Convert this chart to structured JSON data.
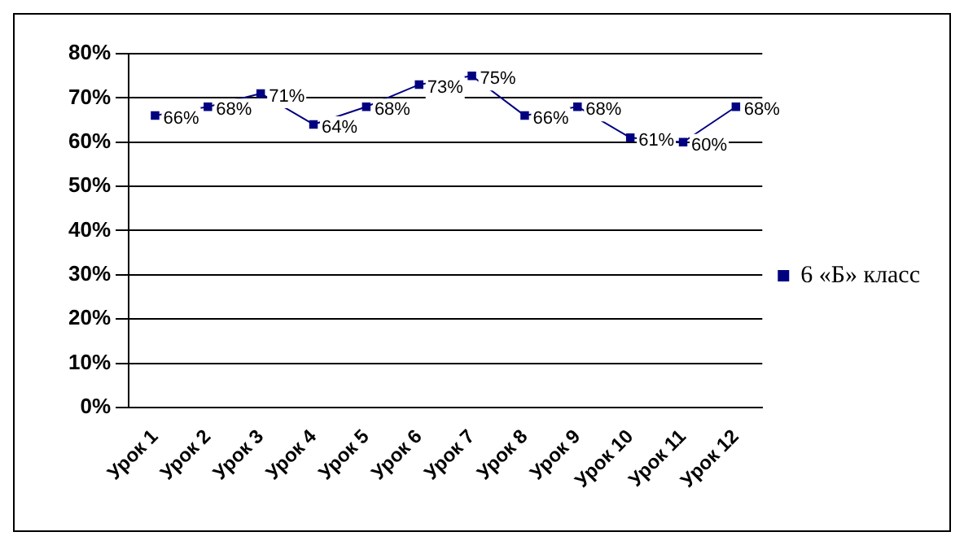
{
  "chart_data": {
    "type": "line",
    "categories": [
      "Урок 1",
      "Урок 2",
      "Урок 3",
      "Урок 4",
      "Урок 5",
      "Урок 6",
      "Урок 7",
      "Урок 8",
      "Урок 9",
      "Урок 10",
      "Урок 11",
      "Урок 12"
    ],
    "series": [
      {
        "name": "6 «Б» класс",
        "color": "#000080",
        "values": [
          66,
          68,
          71,
          64,
          68,
          73,
          75,
          66,
          68,
          61,
          60,
          68
        ],
        "value_labels": [
          "66%",
          "68%",
          "71%",
          "64%",
          "68%",
          "73%",
          "75%",
          "66%",
          "68%",
          "61%",
          "60%",
          "68%"
        ]
      }
    ],
    "ylim": [
      0,
      80
    ],
    "yticks": [
      {
        "value": 0,
        "label": "0%"
      },
      {
        "value": 10,
        "label": "10%"
      },
      {
        "value": 20,
        "label": "20%"
      },
      {
        "value": 30,
        "label": "30%"
      },
      {
        "value": 40,
        "label": "40%"
      },
      {
        "value": 50,
        "label": "50%"
      },
      {
        "value": 60,
        "label": "60%"
      },
      {
        "value": 70,
        "label": "70%"
      },
      {
        "value": 80,
        "label": "80%"
      }
    ],
    "grid": "y",
    "legend": "right",
    "marker": "square",
    "line_style": "solid"
  }
}
